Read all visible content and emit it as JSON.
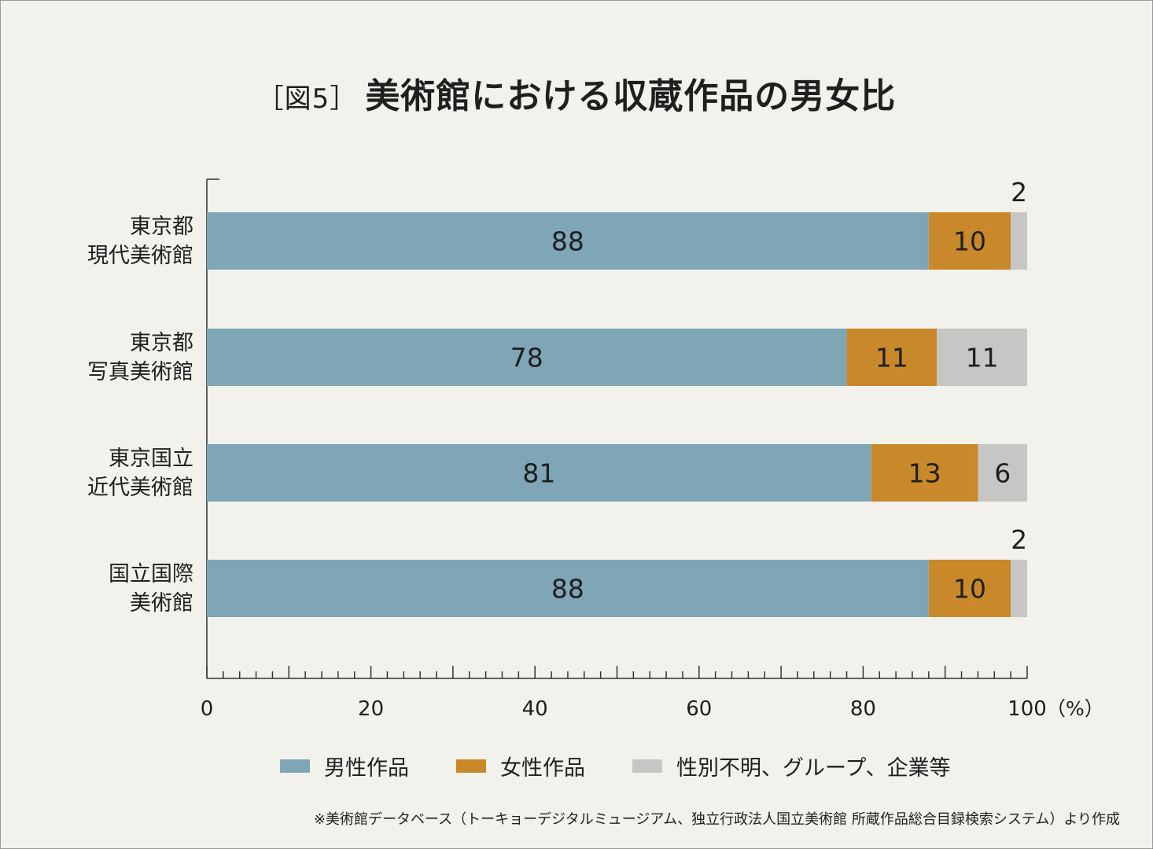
{
  "title": {
    "prefix": "［図5］",
    "text": "美術館における収蔵作品の男女比"
  },
  "chart_data": {
    "type": "bar",
    "stacked": true,
    "orientation": "horizontal",
    "title": "［図5］美術館における収蔵作品の男女比",
    "categories": [
      [
        "東京都",
        "現代美術館"
      ],
      [
        "東京都",
        "写真美術館"
      ],
      [
        "東京国立",
        "近代美術館"
      ],
      [
        "国立国際",
        "美術館"
      ]
    ],
    "series": [
      {
        "name": "男性作品",
        "color": "#7fa6b6",
        "values": [
          88,
          78,
          81,
          88
        ]
      },
      {
        "name": "女性作品",
        "color": "#c9882a",
        "values": [
          10,
          11,
          13,
          10
        ]
      },
      {
        "name": "性別不明、グループ、企業等",
        "color": "#c6c6c4",
        "values": [
          2,
          11,
          6,
          2
        ]
      }
    ],
    "xlim": [
      0,
      100
    ],
    "x_ticks": [
      "0",
      "20",
      "40",
      "60",
      "80",
      "100"
    ],
    "x_unit": "（%）",
    "grid": false,
    "legend": "bottom"
  },
  "source": "※美術館データベース（トーキョーデジタルミュージアム、独立行政法人国立美術館 所蔵作品総合目録検索システム）より作成"
}
